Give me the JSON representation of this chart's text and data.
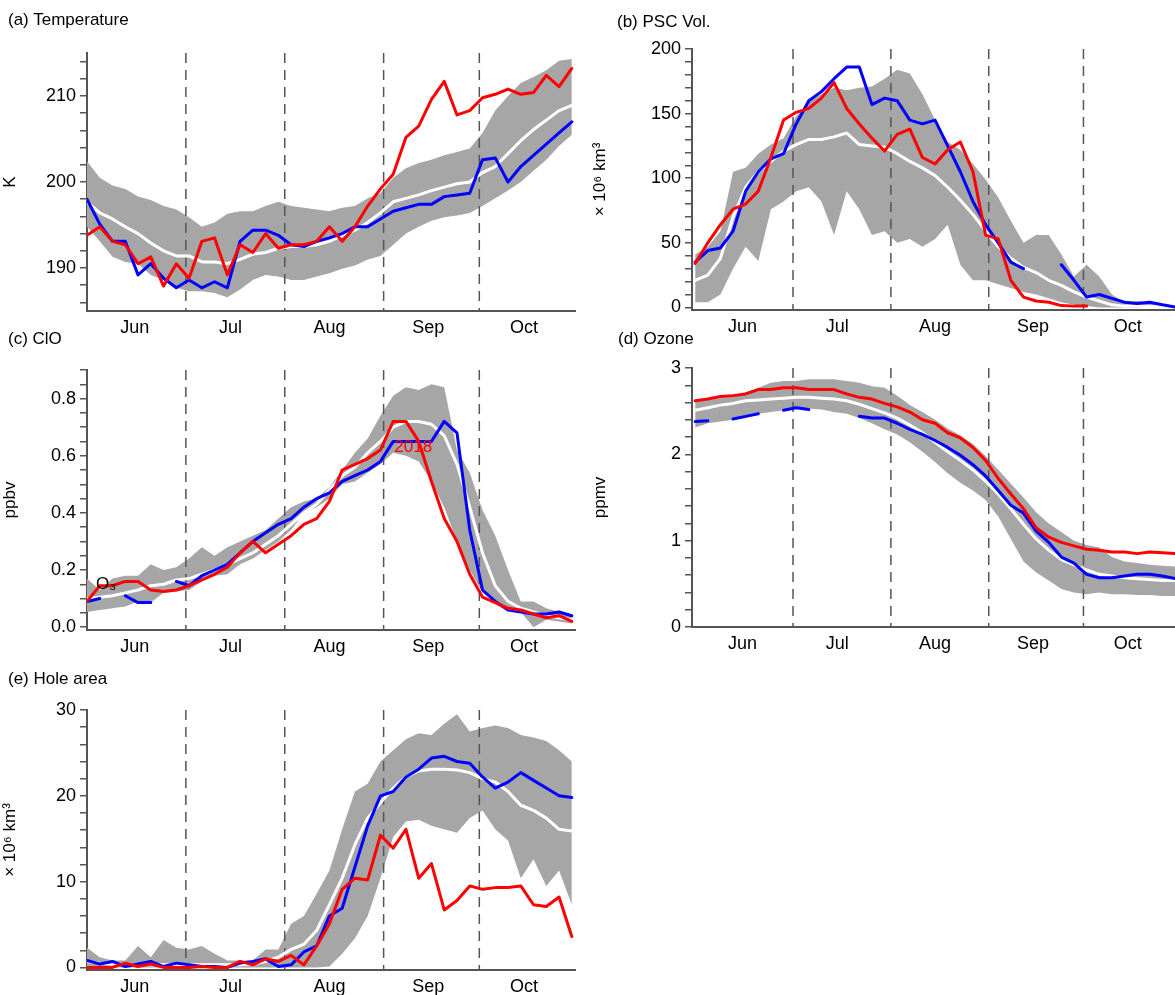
{
  "chart_data": [
    {
      "type": "line",
      "title": "(a) Temperature",
      "ylabel": "K",
      "grid": false,
      "legend": false,
      "marker": "none",
      "x": [
        "--05-31",
        "--06-04",
        "--06-08",
        "--06-12",
        "--06-16",
        "--06-20",
        "--06-24",
        "--06-28",
        "--07-02",
        "--07-06",
        "--07-10",
        "--07-14",
        "--07-18",
        "--07-22",
        "--07-26",
        "--07-30",
        "--08-03",
        "--08-07",
        "--08-11",
        "--08-15",
        "--08-19",
        "--08-23",
        "--08-27",
        "--08-31",
        "--09-04",
        "--09-08",
        "--09-12",
        "--09-16",
        "--09-20",
        "--09-24",
        "--09-28",
        "--10-02",
        "--10-06",
        "--10-10",
        "--10-14",
        "--10-18",
        "--10-22",
        "--10-26",
        "--10-30"
      ],
      "xlim": [
        "--05-31",
        "--10-31"
      ],
      "xticks": [
        {
          "value": "--06-15",
          "label": "Jun"
        },
        {
          "value": "--07-15",
          "label": "Jul"
        },
        {
          "value": "--08-15",
          "label": "Aug"
        },
        {
          "value": "--09-15",
          "label": "Sep"
        },
        {
          "value": "--10-15",
          "label": "Oct"
        }
      ],
      "ylim": [
        185,
        215
      ],
      "yticks": [
        {
          "value": 186,
          "label": null
        },
        {
          "value": 188,
          "label": null
        },
        190,
        {
          "value": 192,
          "label": null
        },
        {
          "value": 194,
          "label": null
        },
        {
          "value": 196,
          "label": null
        },
        {
          "value": 198,
          "label": null
        },
        200,
        {
          "value": 202,
          "label": null
        },
        {
          "value": 204,
          "label": null
        },
        {
          "value": 206,
          "label": null
        },
        {
          "value": 208,
          "label": null
        },
        210,
        {
          "value": 212,
          "label": null
        },
        {
          "value": 214,
          "label": null
        }
      ],
      "ref_lines": [
        {
          "axis": "x",
          "value": "--07-01",
          "color": "#555555",
          "line_style": "dashed"
        },
        {
          "axis": "x",
          "value": "--08-01",
          "color": "#555555",
          "line_style": "dashed"
        },
        {
          "axis": "x",
          "value": "--09-01",
          "color": "#555555",
          "line_style": "dashed"
        },
        {
          "axis": "x",
          "value": "--10-01",
          "color": "#555555",
          "line_style": "dashed"
        }
      ],
      "series": [
        {
          "color": "#ffffff",
          "values": [
            197.7,
            196.4,
            195.7,
            194.8,
            194,
            192.9,
            192,
            191.4,
            191.4,
            190.7,
            190.7,
            190.5,
            191,
            191.6,
            191.8,
            192.3,
            192.5,
            192.5,
            192.7,
            193.1,
            193.8,
            194.4,
            195.3,
            196.4,
            197.7,
            198.1,
            198.5,
            199,
            199.4,
            199.8,
            200,
            201.1,
            201.8,
            203.3,
            204.8,
            206.1,
            207.2,
            208.3,
            208.9
          ],
          "lower": [
            194.8,
            193.1,
            191.3,
            190.7,
            190.5,
            189.2,
            188.6,
            187.7,
            187.3,
            187.3,
            187.1,
            186.6,
            187.5,
            188.6,
            189.2,
            189,
            188.6,
            188.6,
            189,
            189.4,
            189.9,
            190.3,
            191,
            191.4,
            192.7,
            194,
            194.8,
            195.5,
            195.9,
            196.1,
            196.4,
            197.2,
            198.1,
            199,
            200,
            201.3,
            202.6,
            204.2,
            205.5
          ],
          "upper": [
            202.4,
            200.5,
            199.6,
            199.2,
            198.3,
            197.9,
            197.2,
            196.8,
            195.9,
            194.8,
            195.3,
            196.3,
            196.6,
            196.6,
            197.2,
            197.7,
            197.2,
            197,
            196.8,
            196.6,
            197,
            197.2,
            198.1,
            198.7,
            200.5,
            201.6,
            202.2,
            202.6,
            203.1,
            203.5,
            203.9,
            205.7,
            208.3,
            210,
            211.5,
            212.2,
            213,
            214.1,
            214.3
          ]
        },
        {
          "color": "#0000ff",
          "values": [
            198,
            195.1,
            193.1,
            193.1,
            189.2,
            190.5,
            188.8,
            187.7,
            188.6,
            187.7,
            188.4,
            187.7,
            193.1,
            194.4,
            194.4,
            193.8,
            192.7,
            192.5,
            193.1,
            193.5,
            194,
            194.8,
            194.8,
            195.7,
            196.6,
            197,
            197.4,
            197.4,
            198.3,
            198.5,
            198.7,
            202.6,
            202.8,
            200,
            201.8,
            203.1,
            204.4,
            205.7,
            207
          ]
        },
        {
          "color": "#ff0000",
          "values": [
            193.8,
            194.8,
            193.1,
            192.7,
            190.5,
            191.3,
            187.9,
            190.5,
            188.8,
            193.1,
            193.5,
            189.2,
            192.7,
            191.8,
            194,
            192.3,
            192.7,
            192.7,
            193.1,
            194.8,
            193.1,
            194.8,
            197.2,
            199.2,
            200.9,
            205.2,
            206.5,
            209.6,
            211.7,
            207.8,
            208.3,
            209.8,
            210.2,
            210.8,
            210.2,
            210.4,
            212.4,
            211.1,
            213.2
          ]
        }
      ]
    },
    {
      "type": "line",
      "title": "(b) PSC Vol.",
      "ylabel": "× 10⁶ km³",
      "grid": false,
      "legend": false,
      "marker": "none",
      "x": [
        "--05-31",
        "--06-04",
        "--06-08",
        "--06-12",
        "--06-16",
        "--06-20",
        "--06-24",
        "--06-28",
        "--07-02",
        "--07-06",
        "--07-10",
        "--07-14",
        "--07-18",
        "--07-22",
        "--07-26",
        "--07-30",
        "--08-03",
        "--08-07",
        "--08-11",
        "--08-15",
        "--08-19",
        "--08-23",
        "--08-27",
        "--08-31",
        "--09-04",
        "--09-08",
        "--09-12",
        "--09-16",
        "--09-20",
        "--09-24",
        "--09-28",
        "--10-02",
        "--10-06",
        "--10-10",
        "--10-14",
        "--10-18",
        "--10-22",
        "--10-26",
        "--10-30"
      ],
      "xlim": [
        "--05-30",
        "--10-30"
      ],
      "xticks": [
        {
          "value": "--06-15",
          "label": "Jun"
        },
        {
          "value": "--07-15",
          "label": "Jul"
        },
        {
          "value": "--08-15",
          "label": "Aug"
        },
        {
          "value": "--09-15",
          "label": "Sep"
        },
        {
          "value": "--10-15",
          "label": "Oct"
        }
      ],
      "ylim": [
        -2,
        200
      ],
      "yticks": [
        0,
        {
          "value": 10,
          "label": null
        },
        {
          "value": 20,
          "label": null
        },
        {
          "value": 30,
          "label": null
        },
        {
          "value": 40,
          "label": null
        },
        50,
        {
          "value": 60,
          "label": null
        },
        {
          "value": 70,
          "label": null
        },
        {
          "value": 80,
          "label": null
        },
        {
          "value": 90,
          "label": null
        },
        100,
        {
          "value": 110,
          "label": null
        },
        {
          "value": 120,
          "label": null
        },
        {
          "value": 130,
          "label": null
        },
        {
          "value": 140,
          "label": null
        },
        150,
        {
          "value": 160,
          "label": null
        },
        {
          "value": 170,
          "label": null
        },
        {
          "value": 180,
          "label": null
        },
        {
          "value": 190,
          "label": null
        },
        200
      ],
      "ref_lines": [
        {
          "axis": "x",
          "value": "--07-01",
          "color": "#555555",
          "line_style": "dashed"
        },
        {
          "axis": "x",
          "value": "--08-01",
          "color": "#555555",
          "line_style": "dashed"
        },
        {
          "axis": "x",
          "value": "--09-01",
          "color": "#555555",
          "line_style": "dashed"
        },
        {
          "axis": "x",
          "value": "--10-01",
          "color": "#555555",
          "line_style": "dashed"
        }
      ],
      "series": [
        {
          "color": "#ffffff",
          "values": [
            21,
            25,
            38,
            70,
            93,
            105,
            113,
            121,
            126,
            130,
            130,
            132,
            135,
            126,
            125,
            124,
            119,
            113,
            108,
            102,
            93,
            83,
            72,
            59,
            47,
            38,
            31,
            27,
            21,
            17,
            12,
            8,
            5,
            2,
            1,
            1,
            0.5,
            0.5,
            0.5
          ],
          "lower": [
            4,
            4,
            10,
            30,
            47,
            36,
            76,
            82,
            90,
            93,
            82,
            56,
            90,
            76,
            56,
            59,
            50,
            53,
            47,
            53,
            64,
            33,
            21,
            21,
            18,
            15,
            12,
            10,
            7,
            4,
            2,
            1,
            0,
            0,
            0,
            0,
            0,
            0,
            0
          ],
          "upper": [
            41,
            47,
            59,
            105,
            108,
            119,
            126,
            131,
            148,
            159,
            165,
            170,
            168,
            170,
            171,
            177,
            184,
            181,
            165,
            145,
            128,
            122,
            111,
            99,
            85,
            67,
            50,
            56,
            56,
            41,
            24,
            33,
            24,
            10,
            4,
            5,
            4,
            2,
            1
          ]
        },
        {
          "color": "#0000ff",
          "values": [
            35,
            44,
            46,
            59,
            90,
            105,
            115,
            119,
            142,
            160,
            167,
            177,
            186,
            186,
            157,
            162,
            160,
            145,
            142,
            145,
            125,
            105,
            82,
            64,
            50,
            35,
            30,
            null,
            null,
            33,
            21,
            8,
            10,
            7,
            4,
            3,
            4,
            2,
            0.3
          ]
        },
        {
          "color": "#ff0000",
          "values": [
            34,
            50,
            64,
            76,
            80,
            90,
            116,
            145,
            151,
            154,
            162,
            174,
            154,
            142,
            131,
            121,
            134,
            138,
            116,
            111,
            122,
            128,
            105,
            56,
            53,
            21,
            8,
            5,
            4,
            1.4,
            1,
            1,
            null,
            null,
            null,
            null,
            null,
            null,
            null
          ]
        }
      ]
    },
    {
      "type": "line",
      "title": "(c) ClO",
      "ylabel": "ppbv",
      "grid": false,
      "legend": false,
      "marker": "none",
      "x": [
        "--05-31",
        "--06-04",
        "--06-08",
        "--06-12",
        "--06-16",
        "--06-20",
        "--06-24",
        "--06-28",
        "--07-02",
        "--07-06",
        "--07-10",
        "--07-14",
        "--07-18",
        "--07-22",
        "--07-26",
        "--07-30",
        "--08-03",
        "--08-07",
        "--08-11",
        "--08-15",
        "--08-19",
        "--08-23",
        "--08-27",
        "--08-31",
        "--09-04",
        "--09-08",
        "--09-12",
        "--09-16",
        "--09-20",
        "--09-24",
        "--09-28",
        "--10-02",
        "--10-06",
        "--10-10",
        "--10-14",
        "--10-18",
        "--10-22",
        "--10-26",
        "--10-30"
      ],
      "xlim": [
        "--05-31",
        "--10-31"
      ],
      "xticks": [
        {
          "value": "--06-15",
          "label": "Jun"
        },
        {
          "value": "--07-15",
          "label": "Jul"
        },
        {
          "value": "--08-15",
          "label": "Aug"
        },
        {
          "value": "--09-15",
          "label": "Sep"
        },
        {
          "value": "--10-15",
          "label": "Oct"
        }
      ],
      "ylim": [
        -0.01,
        0.9
      ],
      "yticks": [
        {
          "value": 0,
          "label": "0.0"
        },
        {
          "value": 0.05,
          "label": null
        },
        {
          "value": 0.1,
          "label": null
        },
        {
          "value": 0.15,
          "label": null
        },
        0.2,
        {
          "value": 0.25,
          "label": null
        },
        {
          "value": 0.3,
          "label": null
        },
        {
          "value": 0.35,
          "label": null
        },
        0.4,
        {
          "value": 0.45,
          "label": null
        },
        {
          "value": 0.5,
          "label": null
        },
        {
          "value": 0.55,
          "label": null
        },
        0.6,
        {
          "value": 0.65,
          "label": null
        },
        {
          "value": 0.7,
          "label": null
        },
        {
          "value": 0.75,
          "label": null
        },
        0.8,
        {
          "value": 0.85,
          "label": null
        },
        {
          "value": 0.9,
          "label": null
        }
      ],
      "ref_lines": [
        {
          "axis": "x",
          "value": "--07-01",
          "color": "#555555",
          "line_style": "dashed"
        },
        {
          "axis": "x",
          "value": "--08-01",
          "color": "#555555",
          "line_style": "dashed"
        },
        {
          "axis": "x",
          "value": "--09-01",
          "color": "#555555",
          "line_style": "dashed"
        },
        {
          "axis": "x",
          "value": "--10-01",
          "color": "#555555",
          "line_style": "dashed"
        }
      ],
      "annotations": [
        {
          "text": "O₃",
          "x": "--06-06",
          "y": 0.15
        }
      ],
      "series": [
        {
          "color": "#ffffff",
          "values": [
            0.1,
            0.105,
            0.11,
            0.12,
            0.13,
            0.145,
            0.15,
            0.165,
            0.17,
            0.185,
            0.2,
            0.22,
            0.24,
            0.26,
            0.29,
            0.32,
            0.36,
            0.4,
            0.43,
            0.48,
            0.53,
            0.56,
            0.61,
            0.65,
            0.7,
            0.72,
            0.72,
            0.71,
            0.67,
            0.57,
            0.42,
            0.26,
            0.145,
            0.09,
            0.066,
            0.053,
            0.04,
            0.033,
            0.026
          ],
          "lower": [
            0.053,
            0.06,
            0.066,
            0.072,
            0.09,
            0.086,
            0.12,
            0.125,
            0.13,
            0.16,
            0.18,
            0.185,
            0.22,
            0.24,
            0.27,
            0.3,
            0.34,
            0.4,
            0.42,
            0.45,
            0.5,
            0.51,
            0.54,
            0.57,
            0.61,
            0.6,
            0.58,
            0.51,
            0.42,
            0.3,
            0.2,
            0.12,
            0.09,
            0.066,
            0.053,
            0,
            0.026,
            0.02,
            0.013
          ],
          "upper": [
            0.17,
            0.13,
            0.17,
            0.18,
            0.18,
            0.22,
            0.2,
            0.21,
            0.24,
            0.28,
            0.25,
            0.28,
            0.3,
            0.32,
            0.34,
            0.38,
            0.42,
            0.44,
            0.45,
            0.49,
            0.55,
            0.61,
            0.66,
            0.74,
            0.81,
            0.84,
            0.83,
            0.85,
            0.84,
            0.62,
            0.54,
            0.41,
            0.32,
            0.2,
            0.09,
            0.09,
            0.066,
            0.053,
            0.04
          ]
        },
        {
          "color": "#0000ff",
          "values": [
            0.09,
            0.1,
            null,
            0.11,
            0.086,
            0.086,
            null,
            0.16,
            0.145,
            0.18,
            0.2,
            0.22,
            0.26,
            0.3,
            0.33,
            0.36,
            0.38,
            0.42,
            0.45,
            0.47,
            0.51,
            0.53,
            0.55,
            0.58,
            0.65,
            0.65,
            0.65,
            0.65,
            0.72,
            0.68,
            0.34,
            0.13,
            0.09,
            0.06,
            0.053,
            0.046,
            0.046,
            0.053,
            0.04
          ]
        },
        {
          "name": "2018",
          "color": "#ff0000",
          "values": [
            0.09,
            0.145,
            0.145,
            0.16,
            0.16,
            0.13,
            0.125,
            0.13,
            0.145,
            0.165,
            0.185,
            0.21,
            0.26,
            0.3,
            0.26,
            0.29,
            0.32,
            0.36,
            0.38,
            0.44,
            0.55,
            0.57,
            0.59,
            0.62,
            0.72,
            0.72,
            0.65,
            0.51,
            0.38,
            0.3,
            0.185,
            0.105,
            0.086,
            0.066,
            0.06,
            0.046,
            0.033,
            0.04,
            0.02
          ]
        }
      ]
    },
    {
      "type": "line",
      "title": "(d) Ozone",
      "ylabel": "ppmv",
      "grid": false,
      "legend": false,
      "marker": "none",
      "x": [
        "--05-31",
        "--06-04",
        "--06-08",
        "--06-12",
        "--06-16",
        "--06-20",
        "--06-24",
        "--06-28",
        "--07-02",
        "--07-06",
        "--07-10",
        "--07-14",
        "--07-18",
        "--07-22",
        "--07-26",
        "--07-30",
        "--08-03",
        "--08-07",
        "--08-11",
        "--08-15",
        "--08-19",
        "--08-23",
        "--08-27",
        "--08-31",
        "--09-04",
        "--09-08",
        "--09-12",
        "--09-16",
        "--09-20",
        "--09-24",
        "--09-28",
        "--10-02",
        "--10-06",
        "--10-10",
        "--10-14",
        "--10-18",
        "--10-22",
        "--10-26",
        "--10-30"
      ],
      "xlim": [
        "--05-30",
        "--10-30"
      ],
      "xticks": [
        {
          "value": "--06-15",
          "label": "Jun"
        },
        {
          "value": "--07-15",
          "label": "Jul"
        },
        {
          "value": "--08-15",
          "label": "Aug"
        },
        {
          "value": "--09-15",
          "label": "Sep"
        },
        {
          "value": "--10-15",
          "label": "Oct"
        }
      ],
      "ylim": [
        0,
        3
      ],
      "yticks": [
        0,
        {
          "value": 0.2,
          "label": null
        },
        {
          "value": 0.4,
          "label": null
        },
        {
          "value": 0.6,
          "label": null
        },
        {
          "value": 0.8,
          "label": null
        },
        1,
        {
          "value": 1.2,
          "label": null
        },
        {
          "value": 1.4,
          "label": null
        },
        {
          "value": 1.6,
          "label": null
        },
        {
          "value": 1.8,
          "label": null
        },
        2,
        {
          "value": 2.2,
          "label": null
        },
        {
          "value": 2.4,
          "label": null
        },
        {
          "value": 2.6,
          "label": null
        },
        {
          "value": 2.8,
          "label": null
        },
        3
      ],
      "ref_lines": [
        {
          "axis": "x",
          "value": "--07-01",
          "color": "#555555",
          "line_style": "dashed"
        },
        {
          "axis": "x",
          "value": "--08-01",
          "color": "#555555",
          "line_style": "dashed"
        },
        {
          "axis": "x",
          "value": "--09-01",
          "color": "#555555",
          "line_style": "dashed"
        },
        {
          "axis": "x",
          "value": "--10-01",
          "color": "#555555",
          "line_style": "dashed"
        }
      ],
      "series": [
        {
          "color": "#ffffff",
          "values": [
            2.51,
            2.54,
            2.57,
            2.59,
            2.62,
            2.63,
            2.64,
            2.65,
            2.66,
            2.66,
            2.65,
            2.64,
            2.62,
            2.58,
            2.53,
            2.48,
            2.42,
            2.34,
            2.25,
            2.14,
            2.03,
            1.93,
            1.82,
            1.69,
            1.54,
            1.37,
            1.19,
            1.02,
            0.89,
            0.78,
            0.72,
            0.66,
            0.61,
            0.59,
            0.57,
            0.56,
            0.55,
            0.54,
            0.54
          ],
          "lower": [
            2.31,
            2.36,
            2.38,
            2.4,
            2.42,
            2.47,
            2.49,
            2.51,
            2.53,
            2.53,
            2.52,
            2.49,
            2.47,
            2.42,
            2.36,
            2.29,
            2.23,
            2.14,
            2.03,
            1.91,
            1.78,
            1.67,
            1.58,
            1.47,
            1.28,
            1.02,
            0.76,
            0.63,
            0.54,
            0.44,
            0.4,
            0.38,
            0.4,
            0.38,
            0.38,
            0.37,
            0.37,
            0.36,
            0.36
          ],
          "upper": [
            2.62,
            2.63,
            2.65,
            2.68,
            2.72,
            2.77,
            2.83,
            2.85,
            2.85,
            2.87,
            2.87,
            2.87,
            2.85,
            2.83,
            2.79,
            2.77,
            2.68,
            2.57,
            2.49,
            2.4,
            2.3,
            2.22,
            2.12,
            1.98,
            1.82,
            1.66,
            1.5,
            1.33,
            1.2,
            1.1,
            1,
            0.95,
            0.92,
            0.81,
            0.76,
            0.74,
            0.72,
            0.71,
            0.7
          ]
        },
        {
          "color": "#0000ff",
          "values": [
            2.38,
            2.39,
            null,
            2.41,
            2.44,
            2.47,
            null,
            2.51,
            2.54,
            2.52,
            null,
            null,
            null,
            2.44,
            2.42,
            2.42,
            2.36,
            2.29,
            2.23,
            2.16,
            2.08,
            1.99,
            1.88,
            1.75,
            1.58,
            1.41,
            1.32,
            1.11,
            0.98,
            0.81,
            0.74,
            0.61,
            0.57,
            0.57,
            0.59,
            0.61,
            0.61,
            0.59,
            0.56
          ]
        },
        {
          "color": "#ff0000",
          "values": [
            2.62,
            2.64,
            2.67,
            2.68,
            2.7,
            2.75,
            2.75,
            2.77,
            2.77,
            2.75,
            2.75,
            2.75,
            2.7,
            2.66,
            2.64,
            2.59,
            2.55,
            2.49,
            2.4,
            2.36,
            2.25,
            2.19,
            2.08,
            1.93,
            1.72,
            1.54,
            1.37,
            1.15,
            1.04,
            0.98,
            0.94,
            0.9,
            0.89,
            0.87,
            0.87,
            0.85,
            0.87,
            0.86,
            0.85
          ]
        }
      ]
    },
    {
      "type": "line",
      "title": "(e) Hole area",
      "ylabel": "× 10⁶ km³",
      "grid": false,
      "legend": false,
      "marker": "none",
      "x": [
        "--05-31",
        "--06-04",
        "--06-08",
        "--06-12",
        "--06-16",
        "--06-20",
        "--06-24",
        "--06-28",
        "--07-02",
        "--07-06",
        "--07-10",
        "--07-14",
        "--07-18",
        "--07-22",
        "--07-26",
        "--07-30",
        "--08-03",
        "--08-07",
        "--08-11",
        "--08-15",
        "--08-19",
        "--08-23",
        "--08-27",
        "--08-31",
        "--09-04",
        "--09-08",
        "--09-12",
        "--09-16",
        "--09-20",
        "--09-24",
        "--09-28",
        "--10-02",
        "--10-06",
        "--10-10",
        "--10-14",
        "--10-18",
        "--10-22",
        "--10-26",
        "--10-30"
      ],
      "xlim": [
        "--05-31",
        "--10-31"
      ],
      "xticks": [
        {
          "value": "--06-15",
          "label": "Jun"
        },
        {
          "value": "--07-15",
          "label": "Jul"
        },
        {
          "value": "--08-15",
          "label": "Aug"
        },
        {
          "value": "--09-15",
          "label": "Sep"
        },
        {
          "value": "--10-15",
          "label": "Oct"
        }
      ],
      "ylim": [
        -0.3,
        30
      ],
      "yticks": [
        0,
        {
          "value": 2,
          "label": null
        },
        {
          "value": 4,
          "label": null
        },
        {
          "value": 6,
          "label": null
        },
        {
          "value": 8,
          "label": null
        },
        10,
        {
          "value": 12,
          "label": null
        },
        {
          "value": 14,
          "label": null
        },
        {
          "value": 16,
          "label": null
        },
        {
          "value": 18,
          "label": null
        },
        20,
        {
          "value": 22,
          "label": null
        },
        {
          "value": 24,
          "label": null
        },
        {
          "value": 26,
          "label": null
        },
        {
          "value": 28,
          "label": null
        },
        30
      ],
      "ref_lines": [
        {
          "axis": "x",
          "value": "--07-01",
          "color": "#555555",
          "line_style": "dashed"
        },
        {
          "axis": "x",
          "value": "--08-01",
          "color": "#555555",
          "line_style": "dashed"
        },
        {
          "axis": "x",
          "value": "--09-01",
          "color": "#555555",
          "line_style": "dashed"
        },
        {
          "axis": "x",
          "value": "--10-01",
          "color": "#555555",
          "line_style": "dashed"
        }
      ],
      "series": [
        {
          "color": "#ffffff",
          "values": [
            0.7,
            0.5,
            0.4,
            0.3,
            0.3,
            0.3,
            0.3,
            0.3,
            0.3,
            0.3,
            0.3,
            0.3,
            0.3,
            0.4,
            0.7,
            1.2,
            2.1,
            2.7,
            4.3,
            7.3,
            10.4,
            14.3,
            17.4,
            19.2,
            20.9,
            22.2,
            22.9,
            23.1,
            23.1,
            23,
            22.7,
            22,
            21.6,
            20.5,
            18.9,
            18.3,
            17.4,
            16.1,
            15.9
          ],
          "lower": [
            0,
            0,
            0,
            0,
            0,
            0,
            0,
            0,
            0,
            0,
            0,
            0,
            0,
            0,
            0,
            0,
            0,
            0,
            0,
            0.1,
            1.6,
            3.4,
            6,
            10.4,
            15.2,
            17,
            17.2,
            16.5,
            16.1,
            15.7,
            17.4,
            18.3,
            16.1,
            14.8,
            10.4,
            12.6,
            9.5,
            11.3,
            7.3
          ],
          "upper": [
            2.3,
            1.2,
            0.8,
            0.8,
            2.5,
            1.2,
            3.2,
            2.3,
            2.1,
            2.5,
            1.6,
            0.8,
            0.8,
            0.8,
            2.1,
            2.1,
            5.1,
            6,
            8.6,
            11.3,
            16.1,
            20.5,
            21.4,
            24,
            25.3,
            26.6,
            27.3,
            27.1,
            28.4,
            29.5,
            27.5,
            27.9,
            28.2,
            27.9,
            27.1,
            26.8,
            26.4,
            25.3,
            24
          ]
        },
        {
          "color": "#0000ff",
          "values": [
            0.8,
            0.4,
            0.7,
            0.1,
            0.4,
            0.7,
            0.1,
            0.5,
            0.3,
            0.1,
            0.1,
            0,
            0.5,
            0.7,
            1,
            0.1,
            0.3,
            1.8,
            2.5,
            6,
            6.9,
            11.7,
            16.5,
            20,
            20.5,
            22.2,
            23.1,
            24.4,
            24.6,
            24,
            23.8,
            22.2,
            20.9,
            21.6,
            22.7,
            21.8,
            20.9,
            20,
            19.8
          ]
        },
        {
          "color": "#ff0000",
          "values": [
            0,
            0,
            0,
            0.5,
            0.1,
            0.4,
            0,
            0,
            0,
            0.1,
            0,
            0,
            0.7,
            0.3,
            1,
            0.7,
            1.4,
            0.3,
            2.5,
            5.1,
            9.1,
            10.4,
            10.2,
            15.4,
            13.9,
            16.1,
            10.4,
            12.1,
            6.7,
            7.8,
            9.5,
            9.1,
            9.3,
            9.3,
            9.5,
            7.3,
            7.1,
            8.2,
            3.6
          ]
        }
      ]
    }
  ]
}
